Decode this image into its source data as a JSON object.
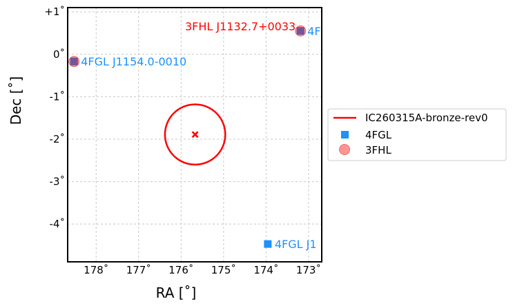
{
  "chart_data": {
    "type": "scatter",
    "xlabel": "RA [$^{\\circ}$]",
    "xlabel_text": "RA [˚]",
    "ylabel_text": "Dec [˚]",
    "xlim": [
      178.67,
      172.69
    ],
    "ylim": [
      -4.89,
      1.1
    ],
    "x_inverted": true,
    "grid": true,
    "xticks": [
      178,
      177,
      176,
      175,
      174,
      173
    ],
    "xtick_labels": [
      "178˚",
      "177˚",
      "176˚",
      "175˚",
      "174˚",
      "173˚"
    ],
    "yticks": [
      1,
      0,
      -1,
      -2,
      -3,
      -4
    ],
    "ytick_labels": [
      "+1˚",
      "0˚",
      "-1˚",
      "-2˚",
      "-3˚",
      "-4˚"
    ],
    "legend_placement": "outside-right",
    "legend": [
      "IC260315A-bronze-rev0",
      "4FGL",
      "3FHL"
    ],
    "event": {
      "name": "IC260315A-bronze-rev0",
      "ra": 175.67,
      "dec": -1.89,
      "radius": 0.71,
      "color": "#ff0000"
    },
    "series": [
      {
        "name": "4FGL",
        "color": "#1e90ff",
        "marker": "square",
        "points": [
          {
            "ra": 178.52,
            "dec": -0.17,
            "label": "4FGL J1154.0-0010"
          },
          {
            "ra": 173.19,
            "dec": 0.55,
            "label": "4F"
          },
          {
            "ra": 173.96,
            "dec": -4.47,
            "label": "4FGL J1"
          }
        ]
      },
      {
        "name": "3FHL",
        "color": "#ff6666",
        "marker": "circle",
        "points": [
          {
            "ra": 178.52,
            "dec": -0.17,
            "label": ""
          },
          {
            "ra": 173.19,
            "dec": 0.55,
            "label": "3FHL J1132.7+0033"
          }
        ]
      }
    ]
  }
}
